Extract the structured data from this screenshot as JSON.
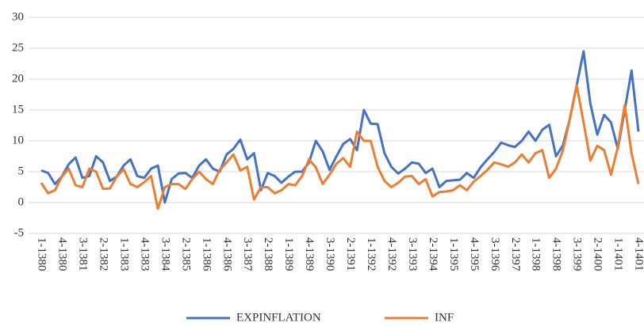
{
  "chart_data": {
    "type": "line",
    "categories": [
      "1-1380",
      null,
      null,
      "4-1380",
      null,
      null,
      "3-1381",
      null,
      null,
      "2-1382",
      null,
      null,
      "1-1383",
      null,
      null,
      "4-1383",
      null,
      null,
      "3-1384",
      null,
      null,
      "2-1385",
      null,
      null,
      "1-1386",
      null,
      null,
      "4-1386",
      null,
      null,
      "3-1387",
      null,
      null,
      "2-1388",
      null,
      null,
      "1-1389",
      null,
      null,
      "4-1389",
      null,
      null,
      "3-1390",
      null,
      null,
      "2-1391",
      null,
      null,
      "1-1392",
      null,
      null,
      "4-1392",
      null,
      null,
      "3-1393",
      null,
      null,
      "2-1394",
      null,
      null,
      "1-1395",
      null,
      null,
      "4-1395",
      null,
      null,
      "3-1396",
      null,
      null,
      "2-1397",
      null,
      null,
      "1-1398",
      null,
      null,
      "4-1398",
      null,
      null,
      "3-1399",
      null,
      null,
      "2-1400",
      null,
      null,
      "1-1401",
      null,
      null,
      "4-1401"
    ],
    "series": [
      {
        "name": "EXPINFLATION",
        "color": "#4472c4",
        "values": [
          5.2,
          4.8,
          3.0,
          4.2,
          6.2,
          7.3,
          4.0,
          4.3,
          7.5,
          6.5,
          3.5,
          4.2,
          6.0,
          7.0,
          4.3,
          4.0,
          5.5,
          6.0,
          0.0,
          3.8,
          4.7,
          4.8,
          4.0,
          6.0,
          7.0,
          5.5,
          5.0,
          7.8,
          8.7,
          10.2,
          7.0,
          8.0,
          2.0,
          4.8,
          4.3,
          3.2,
          4.2,
          5.0,
          5.0,
          6.5,
          10.0,
          8.3,
          5.3,
          7.5,
          9.5,
          10.3,
          8.5,
          15.0,
          12.8,
          12.7,
          8.0,
          5.8,
          4.7,
          5.5,
          6.5,
          6.3,
          4.8,
          5.5,
          2.5,
          3.5,
          3.6,
          3.7,
          4.8,
          4.0,
          5.7,
          7.0,
          8.2,
          9.7,
          9.3,
          9.0,
          10.0,
          11.5,
          10.0,
          11.8,
          12.6,
          7.5,
          9.3,
          13.5,
          19.0,
          24.5,
          16.0,
          11.0,
          14.2,
          13.0,
          8.7,
          15.0,
          21.4,
          11.5
        ]
      },
      {
        "name": "INF",
        "color": "#ed7d31",
        "values": [
          3.2,
          1.5,
          2.0,
          4.2,
          5.5,
          2.8,
          2.5,
          5.5,
          5.0,
          2.2,
          2.3,
          4.2,
          5.4,
          3.0,
          2.5,
          3.3,
          4.3,
          -1.0,
          2.5,
          3.0,
          3.0,
          2.2,
          3.8,
          5.0,
          3.8,
          3.0,
          5.3,
          6.5,
          7.8,
          5.2,
          5.8,
          0.5,
          2.5,
          2.5,
          1.5,
          2.0,
          3.0,
          2.8,
          4.3,
          7.0,
          5.7,
          3.0,
          4.5,
          6.3,
          7.2,
          5.8,
          11.5,
          10.0,
          10.0,
          5.8,
          3.5,
          2.5,
          3.2,
          4.2,
          4.3,
          3.0,
          3.8,
          1.0,
          1.7,
          1.8,
          2.0,
          2.8,
          2.0,
          3.4,
          4.3,
          5.3,
          6.5,
          6.2,
          5.8,
          6.5,
          7.8,
          6.5,
          8.0,
          8.5,
          4.0,
          5.5,
          8.5,
          13.5,
          19.0,
          13.0,
          6.8,
          9.2,
          8.5,
          4.5,
          9.0,
          15.8,
          8.0,
          3.0
        ]
      }
    ],
    "ylim": [
      -5,
      30
    ],
    "yticks": [
      -5,
      0,
      5,
      10,
      15,
      20,
      25,
      30
    ],
    "grid": true,
    "legend": "bottom"
  }
}
